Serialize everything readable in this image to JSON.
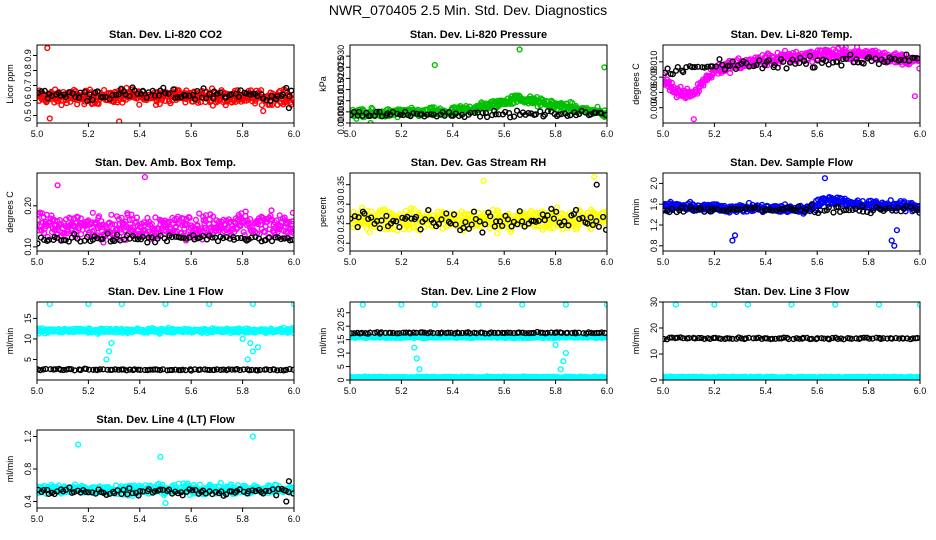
{
  "title": "NWR_070405  2.5 Min. Std. Dev. Diagnostics",
  "chart_data": [
    {
      "type": "scatter",
      "title": "Stan. Dev. Li-820 CO2",
      "ylabel": "Licor ppm",
      "xlim": [
        5.0,
        6.0
      ],
      "ylim": [
        0.45,
        0.97
      ],
      "yticks": [
        "0.5",
        "0.6",
        "0.7",
        "0.8",
        "0.9"
      ],
      "xticks": [
        "5.0",
        "5.2",
        "5.4",
        "5.6",
        "5.8",
        "6.0"
      ],
      "series": [
        {
          "color": "#ff0000",
          "band": [
            [
              5.0,
              0.62
            ],
            [
              5.5,
              0.63
            ],
            [
              6.0,
              0.62
            ]
          ],
          "spread": 0.07,
          "outliers": [
            [
              5.04,
              0.95
            ],
            [
              5.32,
              0.46
            ],
            [
              5.05,
              0.48
            ],
            [
              5.88,
              0.53
            ]
          ]
        },
        {
          "color": "#000000",
          "band": [
            [
              5.0,
              0.64
            ],
            [
              6.0,
              0.64
            ]
          ],
          "spread": 0.06,
          "outliers": [
            [
              5.98,
              0.55
            ]
          ],
          "sparse": true
        }
      ]
    },
    {
      "type": "scatter",
      "title": "Stan. Dev. Li-820 Pressure",
      "ylabel": "kPa",
      "xlim": [
        5.0,
        6.0
      ],
      "ylim": [
        0,
        0.035
      ],
      "yticks": [
        "0.000",
        "0.005",
        "0.010",
        "0.015",
        "0.020",
        "0.025",
        "0.030"
      ],
      "xticks": [
        "5.0",
        "5.2",
        "5.4",
        "5.6",
        "5.8",
        "6.0"
      ],
      "series": [
        {
          "color": "#00c000",
          "band": [
            [
              5.0,
              0.004
            ],
            [
              5.4,
              0.005
            ],
            [
              5.55,
              0.008
            ],
            [
              5.65,
              0.011
            ],
            [
              5.8,
              0.008
            ],
            [
              6.0,
              0.004
            ]
          ],
          "spread": 0.003,
          "outliers": [
            [
              5.33,
              0.026
            ],
            [
              5.66,
              0.033
            ],
            [
              5.99,
              0.025
            ],
            [
              5.08,
              0.0
            ]
          ]
        },
        {
          "color": "#000000",
          "band": [
            [
              5.0,
              0.004
            ],
            [
              6.0,
              0.004
            ]
          ],
          "spread": 0.002,
          "outliers": [],
          "sparse": true
        }
      ]
    },
    {
      "type": "scatter",
      "title": "Stan. Dev. Li-820 Temp.",
      "ylabel": "degrees C",
      "xlim": [
        5.0,
        6.0
      ],
      "ylim": [
        0.002,
        0.0122
      ],
      "yticks": [
        "0.004",
        "0.006",
        "0.008",
        "0.010"
      ],
      "xticks": [
        "5.0",
        "5.2",
        "5.4",
        "5.6",
        "5.8",
        "6.0"
      ],
      "series": [
        {
          "color": "#ff00ff",
          "band": [
            [
              5.0,
              0.008
            ],
            [
              5.05,
              0.006
            ],
            [
              5.12,
              0.006
            ],
            [
              5.2,
              0.009
            ],
            [
              5.4,
              0.0103
            ],
            [
              5.6,
              0.011
            ],
            [
              5.8,
              0.011
            ],
            [
              6.0,
              0.01
            ]
          ],
          "spread": 0.0012,
          "outliers": [
            [
              5.12,
              0.0025
            ],
            [
              5.98,
              0.0055
            ]
          ]
        },
        {
          "color": "#000000",
          "band": [
            [
              5.0,
              0.0085
            ],
            [
              5.2,
              0.0095
            ],
            [
              6.0,
              0.0105
            ]
          ],
          "spread": 0.001,
          "outliers": [],
          "sparse": true
        }
      ]
    },
    {
      "type": "scatter",
      "title": "Stan. Dev. Amb. Box Temp.",
      "ylabel": "degrees C",
      "xlim": [
        5.0,
        6.0
      ],
      "ylim": [
        0.09,
        0.28
      ],
      "yticks": [
        "0.10",
        "0.20"
      ],
      "xticks": [
        "5.0",
        "5.2",
        "5.4",
        "5.6",
        "5.8",
        "6.0"
      ],
      "series": [
        {
          "color": "#ff00ff",
          "band": [
            [
              5.0,
              0.15
            ],
            [
              6.0,
              0.15
            ]
          ],
          "spread": 0.045,
          "outliers": [
            [
              5.08,
              0.25
            ],
            [
              5.42,
              0.27
            ]
          ]
        },
        {
          "color": "#000000",
          "band": [
            [
              5.0,
              0.12
            ],
            [
              6.0,
              0.12
            ]
          ],
          "spread": 0.015,
          "outliers": [],
          "sparse": true
        }
      ]
    },
    {
      "type": "scatter",
      "title": "Stan. Dev. Gas Stream RH",
      "ylabel": "percent",
      "xlim": [
        5.0,
        6.0
      ],
      "ylim": [
        0.18,
        0.38
      ],
      "yticks": [
        "0.20",
        "0.25",
        "0.30",
        "0.35"
      ],
      "xticks": [
        "5.0",
        "5.2",
        "5.4",
        "5.6",
        "5.8",
        "6.0"
      ],
      "series": [
        {
          "color": "#ffff00",
          "band": [
            [
              5.0,
              0.26
            ],
            [
              6.0,
              0.26
            ]
          ],
          "spread": 0.04,
          "outliers": [
            [
              5.52,
              0.36
            ],
            [
              5.95,
              0.37
            ]
          ]
        },
        {
          "color": "#000000",
          "band": [
            [
              5.0,
              0.26
            ],
            [
              6.0,
              0.26
            ]
          ],
          "spread": 0.04,
          "outliers": [
            [
              5.96,
              0.35
            ]
          ],
          "sparse": true
        }
      ]
    },
    {
      "type": "scatter",
      "title": "Stan. Dev. Sample Flow",
      "ylabel": "ml/min",
      "xlim": [
        5.0,
        6.0
      ],
      "ylim": [
        0.7,
        2.2
      ],
      "yticks": [
        "0.8",
        "1.2",
        "1.6",
        "2.0"
      ],
      "xticks": [
        "5.0",
        "5.2",
        "5.4",
        "5.6",
        "5.8",
        "6.0"
      ],
      "series": [
        {
          "color": "#0000ff",
          "band": [
            [
              5.0,
              1.55
            ],
            [
              5.55,
              1.5
            ],
            [
              5.65,
              1.7
            ],
            [
              5.75,
              1.6
            ],
            [
              6.0,
              1.55
            ]
          ],
          "spread": 0.12,
          "outliers": [
            [
              5.27,
              0.9
            ],
            [
              5.28,
              1.0
            ],
            [
              5.63,
              2.1
            ],
            [
              5.89,
              0.9
            ],
            [
              5.9,
              0.8
            ],
            [
              5.91,
              1.1
            ]
          ]
        },
        {
          "color": "#000000",
          "band": [
            [
              5.0,
              1.5
            ],
            [
              6.0,
              1.5
            ]
          ],
          "spread": 0.1,
          "outliers": [],
          "sparse": true
        }
      ]
    },
    {
      "type": "scatter",
      "title": "Stan. Dev. Line 1 Flow",
      "ylabel": "ml/min",
      "xlim": [
        5.0,
        6.0
      ],
      "ylim": [
        0,
        19
      ],
      "yticks": [
        "5",
        "10",
        "15"
      ],
      "xticks": [
        "5.0",
        "5.2",
        "5.4",
        "5.6",
        "5.8",
        "6.0"
      ],
      "series": [
        {
          "color": "#00ffff",
          "band": [
            [
              5.0,
              12
            ],
            [
              6.0,
              12
            ]
          ],
          "spread": 0.8,
          "outliers": [
            [
              5.05,
              18.5
            ],
            [
              5.2,
              18.5
            ],
            [
              5.33,
              18.5
            ],
            [
              5.5,
              18.5
            ],
            [
              5.67,
              18.5
            ],
            [
              5.84,
              18.5
            ],
            [
              6.0,
              18.5
            ],
            [
              5.27,
              5
            ],
            [
              5.28,
              7
            ],
            [
              5.29,
              9
            ],
            [
              5.82,
              5
            ],
            [
              5.84,
              7
            ],
            [
              5.86,
              8
            ],
            [
              5.83,
              9
            ],
            [
              5.8,
              10
            ]
          ]
        },
        {
          "color": "#000000",
          "band": [
            [
              5.0,
              2.5
            ],
            [
              6.0,
              2.5
            ]
          ],
          "spread": 0.3,
          "outliers": [],
          "sparse": true
        }
      ]
    },
    {
      "type": "scatter",
      "title": "Stan. Dev. Line 2 Flow",
      "ylabel": "ml/min",
      "xlim": [
        5.0,
        6.0
      ],
      "ylim": [
        0,
        29
      ],
      "yticks": [
        "0",
        "5",
        "10",
        "15",
        "20",
        "25"
      ],
      "xticks": [
        "5.0",
        "5.2",
        "5.4",
        "5.6",
        "5.8",
        "6.0"
      ],
      "series": [
        {
          "color": "#00ffff",
          "band": [
            [
              5.0,
              1
            ],
            [
              6.0,
              1
            ]
          ],
          "spread": 0.4,
          "outliers": [
            [
              5.05,
              28
            ],
            [
              5.2,
              28
            ],
            [
              5.33,
              28
            ],
            [
              5.5,
              28
            ],
            [
              5.67,
              28
            ],
            [
              5.84,
              28
            ],
            [
              6.0,
              28
            ],
            [
              5.27,
              4
            ],
            [
              5.26,
              8
            ],
            [
              5.25,
              12
            ],
            [
              5.82,
              4
            ],
            [
              5.83,
              7
            ],
            [
              5.84,
              10
            ],
            [
              5.8,
              13
            ]
          ]
        },
        {
          "color": "#00ffff",
          "band": [
            [
              5.0,
              16
            ],
            [
              6.0,
              16
            ]
          ],
          "spread": 0.6,
          "outliers": []
        },
        {
          "color": "#000000",
          "band": [
            [
              5.0,
              17.5
            ],
            [
              6.0,
              17.5
            ]
          ],
          "spread": 0.4,
          "outliers": [],
          "sparse": true
        }
      ]
    },
    {
      "type": "scatter",
      "title": "Stan. Dev. Line 3 Flow",
      "ylabel": "ml/min",
      "xlim": [
        5.0,
        6.0
      ],
      "ylim": [
        0,
        30
      ],
      "yticks": [
        "0",
        "10",
        "20",
        "30"
      ],
      "xticks": [
        "5.0",
        "5.2",
        "5.4",
        "5.6",
        "5.8",
        "6.0"
      ],
      "series": [
        {
          "color": "#00ffff",
          "band": [
            [
              5.0,
              1
            ],
            [
              6.0,
              1
            ]
          ],
          "spread": 0.4,
          "outliers": [
            [
              5.05,
              29
            ],
            [
              5.2,
              29
            ],
            [
              5.33,
              29
            ],
            [
              5.5,
              29
            ],
            [
              5.67,
              29
            ],
            [
              5.84,
              29
            ],
            [
              6.0,
              29
            ]
          ]
        },
        {
          "color": "#000000",
          "band": [
            [
              5.0,
              16
            ],
            [
              6.0,
              16
            ]
          ],
          "spread": 0.5,
          "outliers": [],
          "sparse": true
        }
      ]
    },
    {
      "type": "scatter",
      "title": "Stan. Dev. Line 4 (LT) Flow",
      "ylabel": "ml/min",
      "xlim": [
        5.0,
        6.0
      ],
      "ylim": [
        0.32,
        1.28
      ],
      "yticks": [
        "0.4",
        "0.8",
        "1.2"
      ],
      "xticks": [
        "5.0",
        "5.2",
        "5.4",
        "5.6",
        "5.8",
        "6.0"
      ],
      "series": [
        {
          "color": "#00ffff",
          "band": [
            [
              5.0,
              0.55
            ],
            [
              6.0,
              0.55
            ]
          ],
          "spread": 0.09,
          "outliers": [
            [
              5.16,
              1.1
            ],
            [
              5.48,
              0.95
            ],
            [
              5.84,
              1.2
            ],
            [
              5.5,
              0.38
            ]
          ]
        },
        {
          "color": "#000000",
          "band": [
            [
              5.0,
              0.52
            ],
            [
              6.0,
              0.52
            ]
          ],
          "spread": 0.07,
          "outliers": [
            [
              5.98,
              0.65
            ],
            [
              5.97,
              0.4
            ]
          ],
          "sparse": true
        }
      ]
    }
  ]
}
